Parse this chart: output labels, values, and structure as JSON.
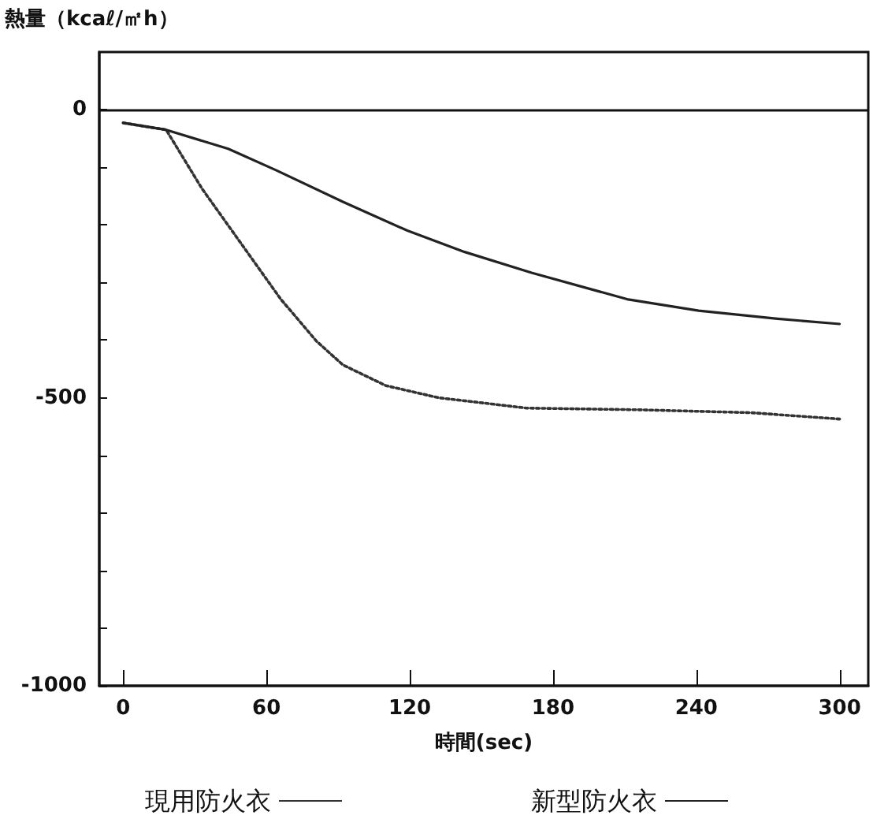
{
  "chart_data": {
    "type": "line",
    "ylabel": "熱量（kcaℓ/㎡h）",
    "xlabel": "時間(sec)",
    "xlim": [
      -10,
      312
    ],
    "xticks": [
      0,
      60,
      120,
      180,
      240,
      300
    ],
    "ylim": [
      -1000,
      100
    ],
    "yticks": [
      -1000,
      {
        "value": -900,
        "label": null
      },
      {
        "value": -800,
        "label": null
      },
      {
        "value": -700,
        "label": null
      },
      {
        "value": -600,
        "label": null
      },
      -500,
      {
        "value": -400,
        "label": null
      },
      {
        "value": -300,
        "label": null
      },
      {
        "value": -200,
        "label": null
      },
      {
        "value": -100,
        "label": null
      },
      0
    ],
    "ref_lines": [
      {
        "axis": "y",
        "value": 0,
        "color": "#111111"
      }
    ],
    "grid": false,
    "legend": "bottom",
    "marker": "none",
    "series": [
      {
        "name": "現用防火衣",
        "color": "#333333",
        "line_style": "dotted",
        "x": [
          0,
          18,
          33,
          44,
          55,
          66,
          81,
          92,
          110,
          132,
          169,
          217,
          263,
          300
        ],
        "values": [
          -23,
          -35,
          -137,
          -201,
          -265,
          -329,
          -402,
          -443,
          -479,
          -500,
          -518,
          -521,
          -526,
          -537
        ]
      },
      {
        "name": "新型防火衣",
        "color": "#222222",
        "line_style": "solid",
        "x": [
          0,
          18,
          44,
          64,
          92,
          119,
          143,
          171,
          211,
          241,
          274,
          300
        ],
        "values": [
          -23,
          -35,
          -68,
          -105,
          -160,
          -210,
          -247,
          -283,
          -329,
          -349,
          -363,
          -372
        ]
      }
    ]
  }
}
